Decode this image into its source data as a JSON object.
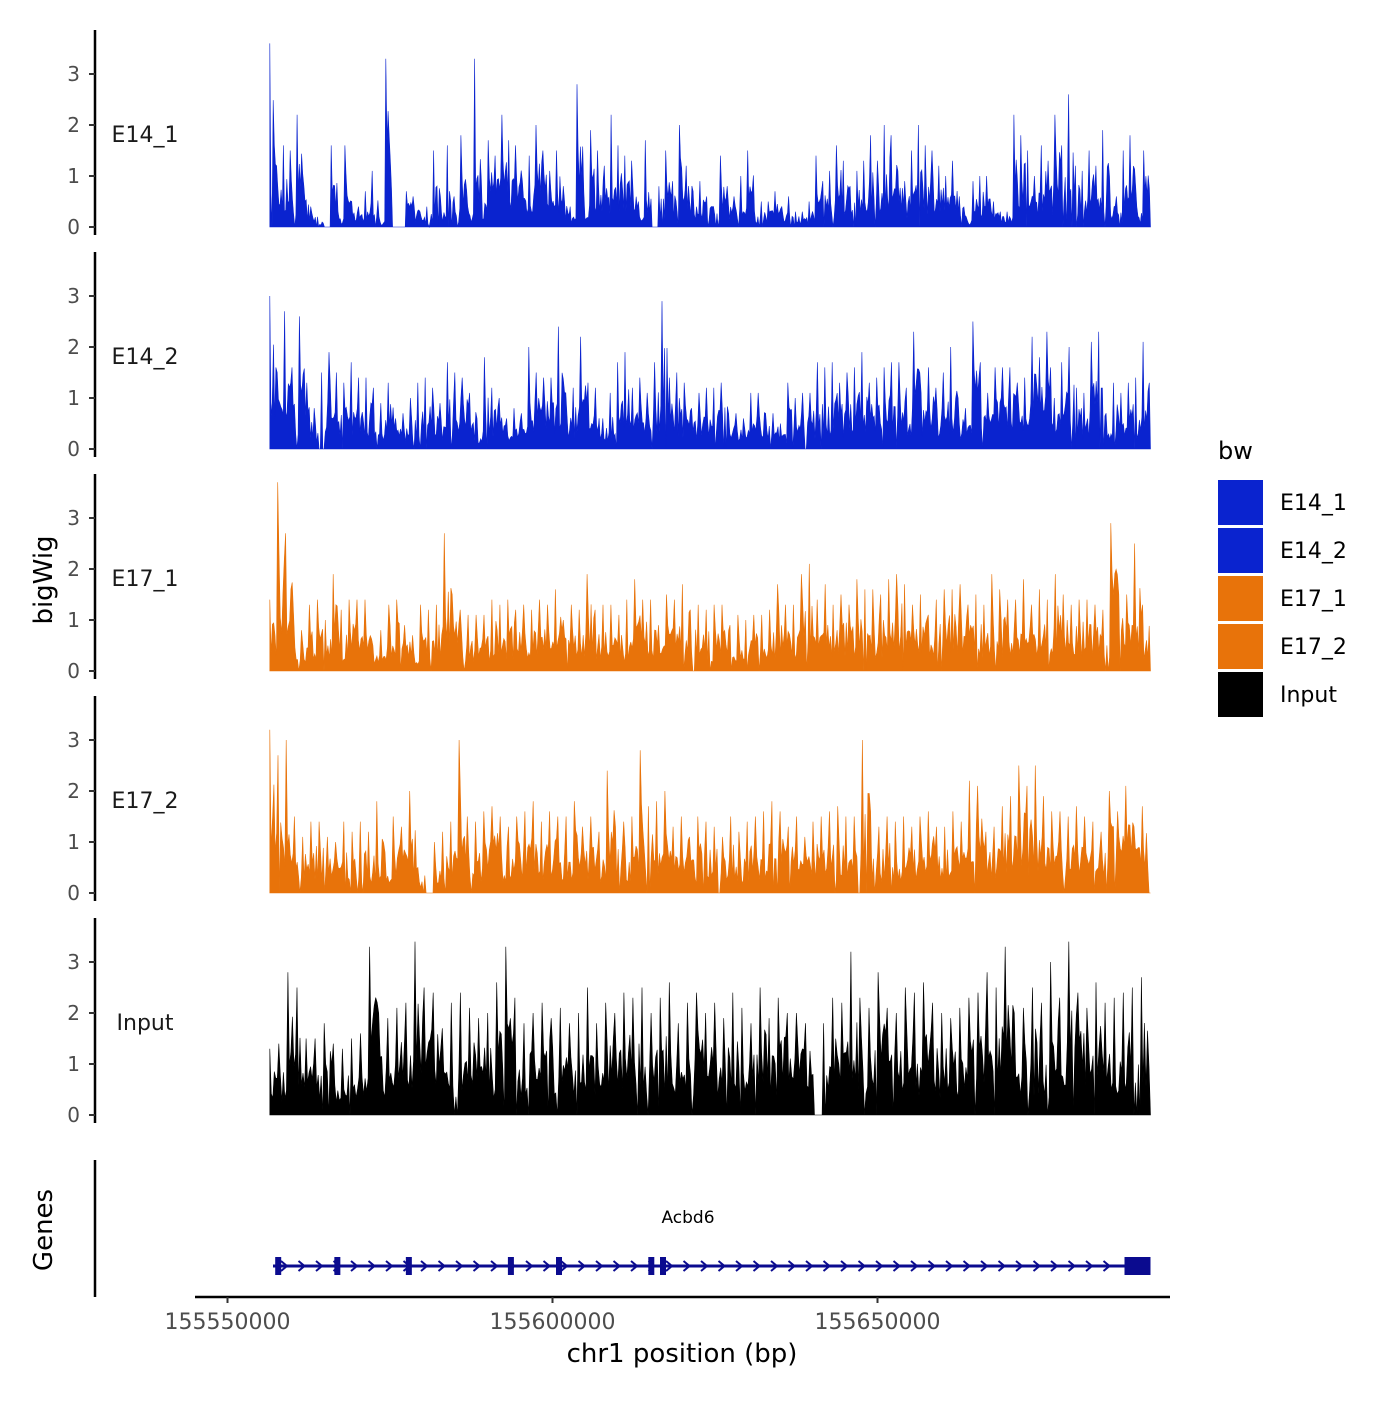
{
  "chart_data": {
    "type": "area",
    "title": "",
    "xlabel": "chr1 position (bp)",
    "ylabel_tracks": "bigWig",
    "ylabel_genes": "Genes",
    "xlim": [
      155545000,
      155695000
    ],
    "data_range": [
      155556500,
      155692000
    ],
    "ylim": [
      0,
      3.8
    ],
    "x_ticks": [
      155550000,
      155600000,
      155650000
    ],
    "x_tick_labels": [
      "155550000",
      "155600000",
      "155650000"
    ],
    "y_ticks": [
      0,
      1,
      2,
      3
    ],
    "y_tick_labels": [
      "0",
      "1",
      "2",
      "3"
    ],
    "grid": false,
    "legend": {
      "title": "bw",
      "placement": "right",
      "entries": [
        {
          "label": "E14_1",
          "color": "#0A23CF"
        },
        {
          "label": "E14_2",
          "color": "#0A23CF"
        },
        {
          "label": "E17_1",
          "color": "#E8730A"
        },
        {
          "label": "E17_2",
          "color": "#E8730A"
        },
        {
          "label": "Input",
          "color": "#000000"
        }
      ]
    },
    "series": [
      {
        "name": "E14_1",
        "color": "#0A23CF",
        "values": [
          3.6,
          1.2,
          1.6,
          1.5,
          2.2,
          0.8,
          0.4,
          0.2,
          0.0,
          1.6,
          0.3,
          1.6,
          0.5,
          0.4,
          0.7,
          1.1,
          0.2,
          3.3,
          0.0,
          0.0,
          0.7,
          0.6,
          0.3,
          0.4,
          1.5,
          0.6,
          1.6,
          0.6,
          1.8,
          0.4,
          3.3,
          0.9,
          1.7,
          1.4,
          2.2,
          1.7,
          1.6,
          0.9,
          1.4,
          2.0,
          1.5,
          1.1,
          1.5,
          0.8,
          0.4,
          2.8,
          0.7,
          1.9,
          1.5,
          1.2,
          2.2,
          1.6,
          1.4,
          1.3,
          0.5,
          1.7,
          0.0,
          0.8,
          1.5,
          0.9,
          2.0,
          1.2,
          0.7,
          0.9,
          0.6,
          0.4,
          1.4,
          0.8,
          0.6,
          1.0,
          1.5,
          0.3,
          0.5,
          0.5,
          0.7,
          0.4,
          0.6,
          0.3,
          0.3,
          0.5,
          1.4,
          0.9,
          1.1,
          1.6,
          1.3,
          0.8,
          1.1,
          1.3,
          1.8,
          1.3,
          2.0,
          1.8,
          1.1,
          0.9,
          1.5,
          2.0,
          1.6,
          1.5,
          1.2,
          1.0,
          1.3,
          0.6,
          0.2,
          0.9,
          1.0,
          1.0,
          0.5,
          0.3,
          0.3,
          2.2,
          1.8,
          1.5,
          1.0,
          1.6,
          1.3,
          2.2,
          1.6,
          2.6,
          1.2,
          1.1,
          1.5,
          1.2,
          1.9,
          1.0,
          0.6,
          1.5,
          1.8,
          0.4,
          1.5
        ]
      },
      {
        "name": "E14_2",
        "color": "#0A23CF",
        "values": [
          3.0,
          1.5,
          2.7,
          1.6,
          2.6,
          1.3,
          0.8,
          1.5,
          1.9,
          1.5,
          1.3,
          1.7,
          1.4,
          1.4,
          1.2,
          0.9,
          1.3,
          0.6,
          0.7,
          1.0,
          1.3,
          1.4,
          1.2,
          0.9,
          1.7,
          1.5,
          1.4,
          1.1,
          0.6,
          1.8,
          1.2,
          1.0,
          0.6,
          0.8,
          0.7,
          2.0,
          1.5,
          1.4,
          1.4,
          2.4,
          1.1,
          1.2,
          2.2,
          1.3,
          1.2,
          0.6,
          1.1,
          1.7,
          1.9,
          1.2,
          1.4,
          1.1,
          1.7,
          2.9,
          1.4,
          1.5,
          1.3,
          0.8,
          1.1,
          1.2,
          1.2,
          1.3,
          0.7,
          0.7,
          0.6,
          1.1,
          1.1,
          0.7,
          0.7,
          0.5,
          1.3,
          1.0,
          1.1,
          1.1,
          1.7,
          1.6,
          1.7,
          1.3,
          1.5,
          1.6,
          1.9,
          1.3,
          1.4,
          1.6,
          1.7,
          1.7,
          1.2,
          2.3,
          1.1,
          1.6,
          1.2,
          1.5,
          2.0,
          1.0,
          0.8,
          2.5,
          1.7,
          1.1,
          1.6,
          1.6,
          1.6,
          1.3,
          1.4,
          2.2,
          1.8,
          2.3,
          1.0,
          1.7,
          2.0,
          1.2,
          1.1,
          2.1,
          2.3,
          0.7,
          1.3,
          1.1,
          1.3,
          1.4,
          2.1
        ]
      },
      {
        "name": "E17_1",
        "color": "#E8730A",
        "values": [
          1.4,
          3.7,
          2.7,
          1.1,
          0.8,
          1.3,
          1.4,
          1.0,
          1.9,
          1.2,
          1.4,
          1.4,
          1.4,
          0.5,
          0.8,
          1.3,
          1.4,
          0.9,
          0.7,
          1.3,
          1.2,
          1.3,
          2.7,
          1.5,
          1.2,
          1.1,
          1.1,
          1.1,
          1.4,
          1.3,
          1.4,
          1.2,
          1.3,
          1.2,
          1.4,
          1.3,
          1.6,
          1.0,
          1.3,
          1.2,
          1.9,
          1.2,
          1.3,
          1.3,
          1.1,
          1.4,
          1.8,
          1.4,
          1.4,
          0.9,
          1.5,
          1.4,
          1.7,
          1.2,
          1.3,
          1.2,
          1.3,
          1.3,
          0.9,
          1.1,
          1.0,
          1.1,
          1.1,
          1.2,
          1.7,
          1.3,
          1.3,
          1.9,
          2.1,
          1.4,
          1.7,
          1.3,
          1.5,
          1.3,
          1.8,
          1.6,
          1.6,
          1.5,
          1.8,
          1.9,
          1.7,
          1.3,
          1.5,
          1.1,
          1.4,
          1.6,
          1.6,
          1.7,
          1.3,
          1.5,
          1.3,
          1.9,
          1.6,
          1.4,
          1.4,
          1.8,
          1.3,
          1.6,
          1.4,
          1.9,
          1.5,
          1.3,
          1.4,
          1.4,
          1.3,
          1.2,
          2.9,
          1.5,
          1.5,
          2.5,
          1.3
        ]
      },
      {
        "name": "E17_2",
        "color": "#E8730A",
        "values": [
          3.2,
          2.7,
          3.0,
          1.5,
          1.1,
          1.4,
          1.4,
          1.1,
          1.0,
          1.4,
          1.2,
          1.4,
          1.2,
          1.8,
          0.8,
          1.5,
          1.3,
          2.0,
          0.5,
          0.0,
          1.0,
          1.2,
          1.4,
          3.0,
          1.5,
          1.4,
          1.6,
          1.7,
          1.5,
          1.3,
          1.5,
          1.6,
          1.8,
          1.4,
          1.6,
          1.5,
          1.5,
          1.8,
          1.3,
          1.5,
          1.2,
          2.4,
          1.3,
          1.4,
          1.5,
          2.8,
          1.7,
          1.8,
          2.0,
          1.3,
          1.5,
          1.1,
          1.5,
          1.4,
          1.3,
          1.1,
          1.5,
          1.2,
          1.4,
          1.5,
          1.6,
          1.8,
          1.6,
          1.3,
          1.5,
          1.1,
          1.4,
          1.5,
          1.6,
          1.7,
          1.5,
          1.5,
          3.0,
          1.6,
          1.3,
          1.5,
          1.4,
          1.5,
          1.3,
          1.5,
          1.6,
          1.3,
          1.3,
          1.6,
          1.4,
          2.2,
          2.1,
          1.2,
          1.3,
          1.7,
          1.9,
          2.5,
          2.1,
          2.5,
          1.9,
          1.6,
          1.6,
          1.5,
          1.7,
          1.5,
          1.4,
          1.2,
          2.0,
          1.6,
          2.1,
          1.3,
          1.7
        ]
      },
      {
        "name": "Input",
        "color": "#000000",
        "values": [
          1.3,
          1.4,
          2.8,
          2.5,
          1.5,
          1.5,
          1.8,
          1.4,
          1.3,
          1.5,
          1.6,
          3.3,
          2.0,
          1.9,
          2.1,
          2.2,
          3.4,
          2.5,
          2.4,
          1.7,
          2.2,
          2.4,
          2.1,
          1.9,
          2.0,
          2.6,
          3.3,
          2.3,
          1.8,
          2.0,
          2.2,
          1.9,
          2.1,
          1.8,
          2.0,
          2.5,
          1.8,
          2.2,
          2.0,
          2.4,
          2.3,
          2.5,
          2.0,
          2.3,
          2.6,
          1.8,
          2.2,
          2.4,
          2.0,
          2.2,
          1.9,
          2.4,
          2.1,
          1.8,
          2.5,
          1.9,
          2.3,
          2.0,
          2.0,
          1.8,
          0.0,
          1.8,
          2.3,
          2.2,
          3.2,
          2.3,
          2.1,
          2.8,
          2.1,
          2.0,
          2.5,
          2.4,
          2.6,
          2.2,
          2.0,
          1.9,
          2.1,
          2.3,
          2.4,
          2.8,
          2.5,
          3.3,
          2.0,
          2.1,
          2.5,
          2.2,
          3.0,
          2.3,
          3.4,
          2.4,
          2.1,
          2.6,
          2.2,
          2.3,
          2.4,
          2.5,
          2.7
        ]
      }
    ],
    "gene_track": {
      "gene": "Acbd6",
      "label": "Acbd6",
      "strand": "+",
      "color": "#0B0B8F",
      "start": 155557000,
      "end": 155692000,
      "exons": [
        155557800,
        155566900,
        155577900,
        155593600,
        155601000,
        155615200,
        155617000
      ],
      "utr_block": [
        155688000,
        155692000
      ]
    }
  }
}
